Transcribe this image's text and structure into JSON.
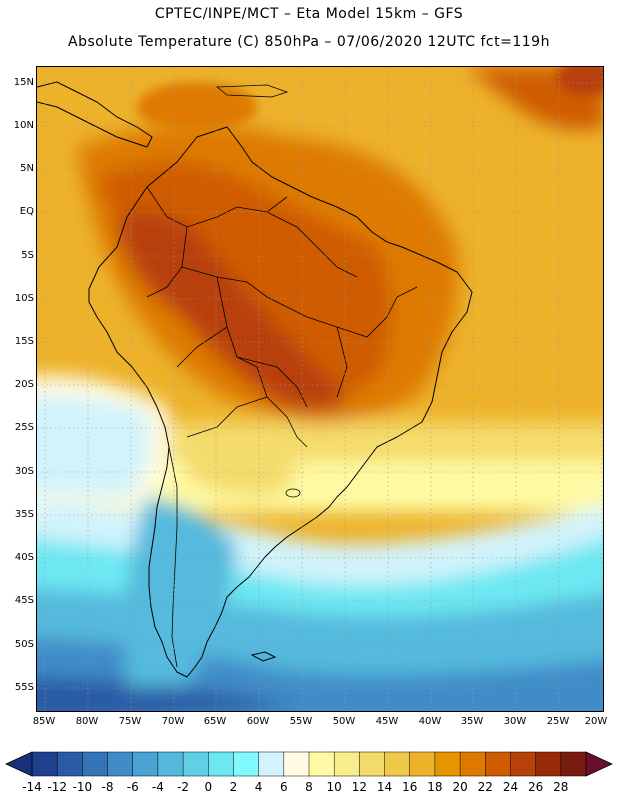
{
  "header": {
    "line1": "CPTEC/INPE/MCT –  Eta Model 15km – GFS",
    "line2": "Absolute Temperature (C) 850hPa – 07/06/2020 12UTC fct=119h"
  },
  "map": {
    "lat_labels": [
      "15N",
      "10N",
      "5N",
      "EQ",
      "5S",
      "10S",
      "15S",
      "20S",
      "25S",
      "30S",
      "35S",
      "40S",
      "45S",
      "50S",
      "55S"
    ],
    "lon_labels": [
      "85W",
      "80W",
      "75W",
      "70W",
      "65W",
      "60W",
      "55W",
      "50W",
      "45W",
      "40W",
      "35W",
      "30W",
      "25W",
      "20W"
    ]
  },
  "colorbar": {
    "labels": [
      "-14",
      "-12",
      "-10",
      "-8",
      "-6",
      "-4",
      "-2",
      "0",
      "2",
      "4",
      "6",
      "8",
      "10",
      "12",
      "14",
      "16",
      "18",
      "20",
      "22",
      "24",
      "26",
      "28"
    ],
    "colors": [
      "#1f3f8f",
      "#2a5ba6",
      "#3473b8",
      "#3f8cc8",
      "#49a3d3",
      "#54badd",
      "#5fd0e6",
      "#6de8f2",
      "#82f8ff",
      "#d2f3fb",
      "#fffbe3",
      "#fffaa3",
      "#f8ed8c",
      "#f4dc6c",
      "#efc84a",
      "#edb22a",
      "#e59600",
      "#de7a00",
      "#cf5c00",
      "#b8400a",
      "#9a2b0a",
      "#7a1c10"
    ],
    "low_end_color": "#16307a",
    "high_end_color": "#6b0f2c"
  },
  "legend_colors": {
    "ocean_warm": "#edb22a",
    "land_hot": "#b8400a",
    "mid_lat": "#fffaa3",
    "cold_south": "#49a3d3"
  }
}
